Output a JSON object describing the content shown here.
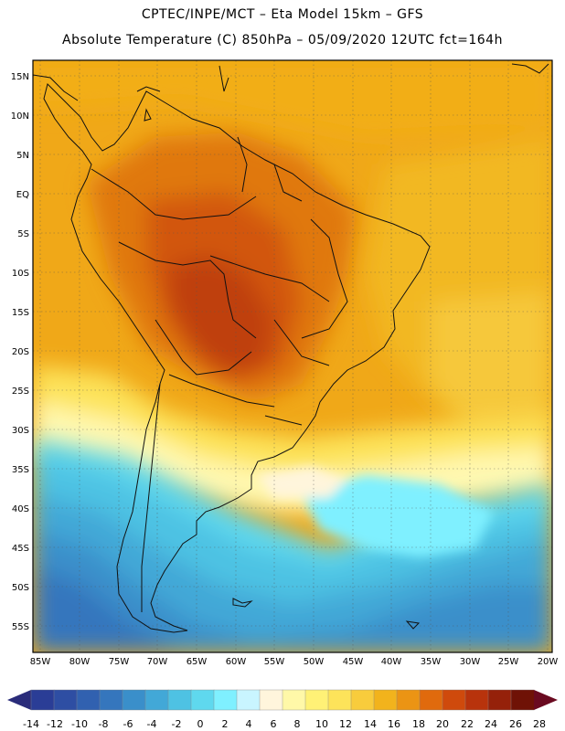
{
  "header": {
    "line1": "CPTEC/INPE/MCT –   Eta Model 15km – GFS",
    "line2": "Absolute Temperature (C) 850hPa – 05/09/2020 12UTC fct=164h"
  },
  "lat_labels": [
    "15N",
    "10N",
    "5N",
    "EQ",
    "5S",
    "10S",
    "15S",
    "20S",
    "25S",
    "30S",
    "35S",
    "40S",
    "45S",
    "50S",
    "55S"
  ],
  "lon_labels": [
    "85W",
    "80W",
    "75W",
    "70W",
    "65W",
    "60W",
    "55W",
    "50W",
    "45W",
    "40W",
    "35W",
    "30W",
    "25W",
    "20W"
  ],
  "colorbar": {
    "labels": [
      "-14",
      "-12",
      "-10",
      "-8",
      "-6",
      "-4",
      "-2",
      "0",
      "2",
      "4",
      "6",
      "8",
      "10",
      "12",
      "14",
      "16",
      "18",
      "20",
      "22",
      "24",
      "26",
      "28"
    ],
    "colors": [
      "#2a3d96",
      "#2e4ea3",
      "#3161b0",
      "#3576bd",
      "#3a8fca",
      "#42a8d7",
      "#4ec2e3",
      "#5fd8ee",
      "#7ff0ff",
      "#c9f5ff",
      "#fff5dc",
      "#fff8a8",
      "#fff176",
      "#fde35a",
      "#f8cc3c",
      "#f2b31c",
      "#eb9414",
      "#e06a0d",
      "#cf4a0c",
      "#b8330c",
      "#95210a",
      "#6f1206"
    ],
    "under_color": "#2a2c7a",
    "over_color": "#6a0a20"
  }
}
